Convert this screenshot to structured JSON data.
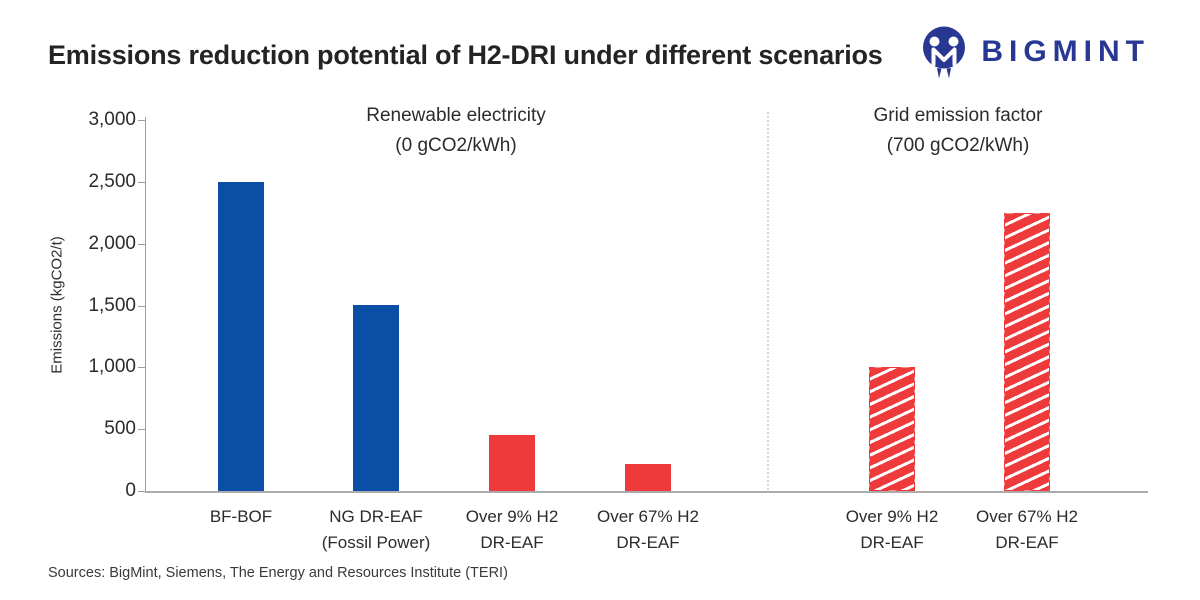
{
  "page": {
    "title": "Emissions reduction potential of H2-DRI under different scenarios",
    "sources": "Sources: BigMint, Siemens, The Energy and Resources Institute (TERI)"
  },
  "logo": {
    "brand": "BIGMINT",
    "color": "#283791",
    "icon": "bigmint-m-figures-icon"
  },
  "chart_data": {
    "type": "bar",
    "title": "Emissions reduction potential of H2-DRI under different scenarios",
    "xlabel": "",
    "ylabel": "Emissions (kgCO2/t)",
    "ylim": [
      0,
      3000
    ],
    "yticks": [
      0,
      500,
      1000,
      1500,
      2000,
      2500,
      3000
    ],
    "ytick_labels": [
      "0",
      "500",
      "1,000",
      "1,500",
      "2,000",
      "2,500",
      "3,000"
    ],
    "grid": false,
    "legend": "none",
    "colors": {
      "blue": "#0b4ea6",
      "red": "#ee3a3a"
    },
    "groups": [
      {
        "title": "Renewable electricity",
        "subtitle": "(0 gCO2/kWh)",
        "bars": [
          {
            "category": "BF-BOF",
            "label_lines": [
              "BF-BOF"
            ],
            "value": 2500,
            "color": "#0b4ea6",
            "pattern": "solid"
          },
          {
            "category": "NG DR-EAF (Fossil Power)",
            "label_lines": [
              "NG DR-EAF",
              "(Fossil Power)"
            ],
            "value": 1500,
            "color": "#0b4ea6",
            "pattern": "solid"
          },
          {
            "category": "Over 9% H2 DR-EAF",
            "label_lines": [
              "Over 9% H2",
              "DR-EAF"
            ],
            "value": 450,
            "color": "#ee3a3a",
            "pattern": "solid"
          },
          {
            "category": "Over 67% H2 DR-EAF",
            "label_lines": [
              "Over 67% H2",
              "DR-EAF"
            ],
            "value": 220,
            "color": "#ee3a3a",
            "pattern": "solid"
          }
        ]
      },
      {
        "title": "Grid emission factor",
        "subtitle": "(700 gCO2/kWh)",
        "bars": [
          {
            "category": "Over 9% H2 DR-EAF",
            "label_lines": [
              "Over 9% H2",
              "DR-EAF"
            ],
            "value": 1000,
            "color": "#ee3a3a",
            "pattern": "hatch"
          },
          {
            "category": "Over 67% H2 DR-EAF",
            "label_lines": [
              "Over 67% H2",
              "DR-EAF"
            ],
            "value": 2250,
            "color": "#ee3a3a",
            "pattern": "hatch"
          }
        ]
      }
    ]
  }
}
